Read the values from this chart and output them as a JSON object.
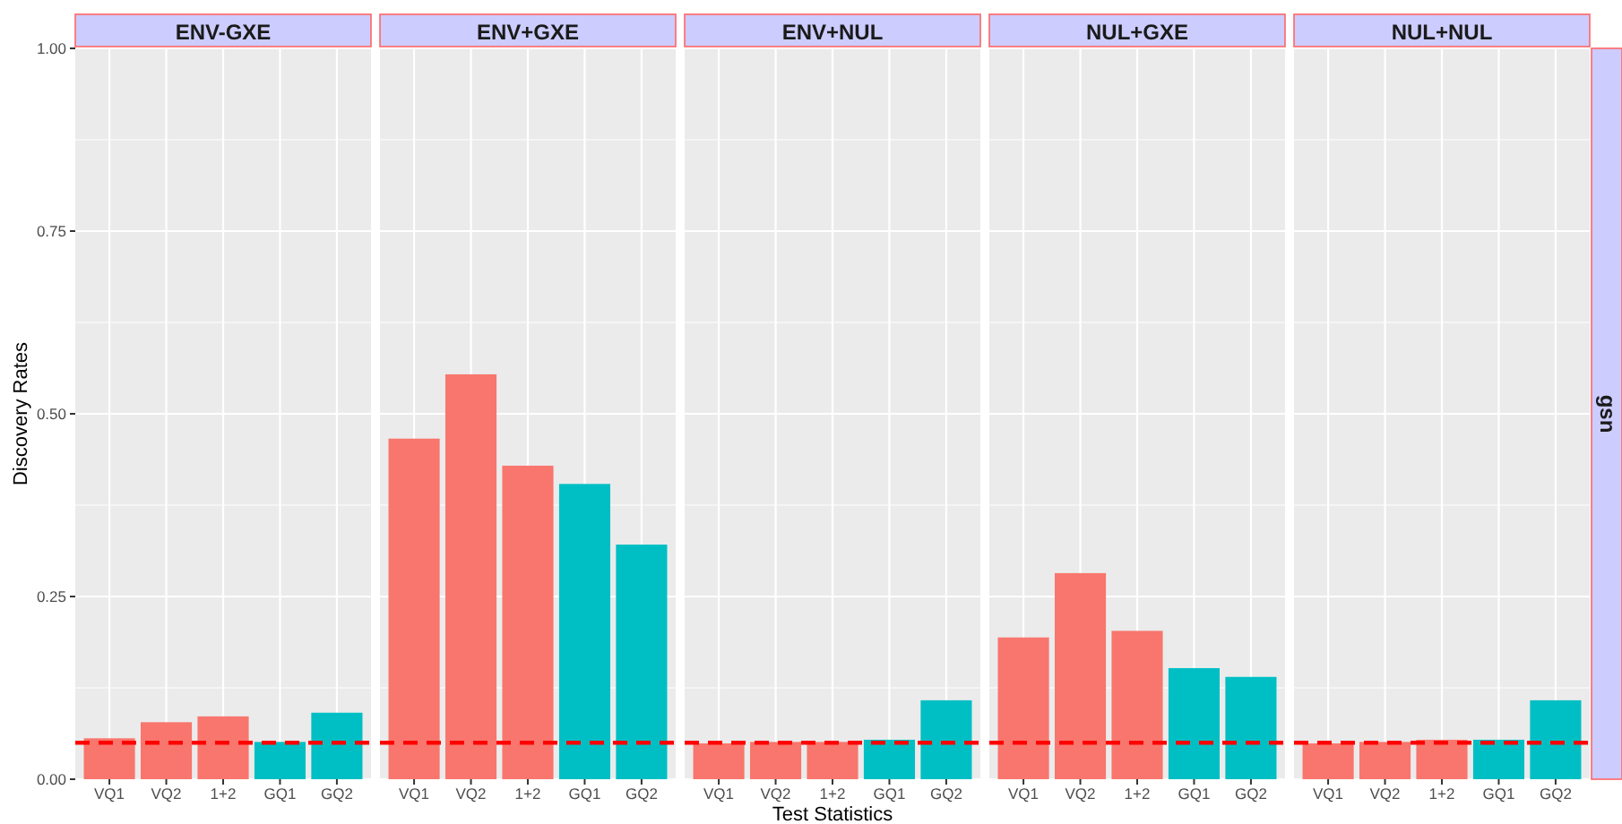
{
  "chart_data": [
    {
      "type": "bar",
      "title": "ENV-GXE",
      "ylabel": "Discovery Rates",
      "categories": [
        "VQ1",
        "VQ2",
        "1+2",
        "GQ1",
        "GQ2"
      ],
      "values": [
        0.056,
        0.078,
        0.086,
        0.051,
        0.091
      ],
      "colors": [
        "#f8766d",
        "#f8766d",
        "#f8766d",
        "#00bfc4",
        "#00bfc4"
      ],
      "ylim": [
        0,
        1
      ],
      "yticks": [
        {
          "value": 0,
          "label": "0.00"
        },
        {
          "value": 0.25,
          "label": "0.25"
        },
        {
          "value": 0.5,
          "label": "0.50"
        },
        {
          "value": 0.75,
          "label": "0.75"
        },
        {
          "value": 1,
          "label": "1.00"
        }
      ],
      "grid": true,
      "ref_lines": [
        {
          "axis": "y",
          "value": 0.05,
          "color": "#ff0000",
          "line_style": "dashed"
        }
      ]
    },
    {
      "type": "bar",
      "title": "ENV+GXE",
      "categories": [
        "VQ1",
        "VQ2",
        "1+2",
        "GQ1",
        "GQ2"
      ],
      "values": [
        0.466,
        0.554,
        0.429,
        0.404,
        0.321
      ],
      "colors": [
        "#f8766d",
        "#f8766d",
        "#f8766d",
        "#00bfc4",
        "#00bfc4"
      ],
      "ylim": [
        0,
        1
      ],
      "yticks": [
        0,
        0.25,
        0.5,
        0.75,
        1
      ],
      "tick_labels": "x",
      "grid": true,
      "ref_lines": [
        {
          "axis": "y",
          "value": 0.05,
          "color": "#ff0000",
          "line_style": "dashed"
        }
      ]
    },
    {
      "type": "bar",
      "title": "ENV+NUL",
      "xlabel": "Test Statistics",
      "categories": [
        "VQ1",
        "VQ2",
        "1+2",
        "GQ1",
        "GQ2"
      ],
      "values": [
        0.049,
        0.051,
        0.051,
        0.054,
        0.108
      ],
      "colors": [
        "#f8766d",
        "#f8766d",
        "#f8766d",
        "#00bfc4",
        "#00bfc4"
      ],
      "ylim": [
        0,
        1
      ],
      "yticks": [
        0,
        0.25,
        0.5,
        0.75,
        1
      ],
      "tick_labels": "x",
      "grid": true,
      "ref_lines": [
        {
          "axis": "y",
          "value": 0.05,
          "color": "#ff0000",
          "line_style": "dashed"
        }
      ]
    },
    {
      "type": "bar",
      "title": "NUL+GXE",
      "categories": [
        "VQ1",
        "VQ2",
        "1+2",
        "GQ1",
        "GQ2"
      ],
      "values": [
        0.194,
        0.282,
        0.203,
        0.152,
        0.14
      ],
      "colors": [
        "#f8766d",
        "#f8766d",
        "#f8766d",
        "#00bfc4",
        "#00bfc4"
      ],
      "ylim": [
        0,
        1
      ],
      "yticks": [
        0,
        0.25,
        0.5,
        0.75,
        1
      ],
      "tick_labels": "x",
      "grid": true,
      "ref_lines": [
        {
          "axis": "y",
          "value": 0.05,
          "color": "#ff0000",
          "line_style": "dashed"
        }
      ]
    },
    {
      "type": "bar",
      "title": "NUL+NUL",
      "annotations": [
        "gsn"
      ],
      "categories": [
        "VQ1",
        "VQ2",
        "1+2",
        "GQ1",
        "GQ2"
      ],
      "values": [
        0.049,
        0.051,
        0.054,
        0.054,
        0.108
      ],
      "colors": [
        "#f8766d",
        "#f8766d",
        "#f8766d",
        "#00bfc4",
        "#00bfc4"
      ],
      "ylim": [
        0,
        1
      ],
      "yticks": [
        0,
        0.25,
        0.5,
        0.75,
        1
      ],
      "tick_labels": "x",
      "grid": true,
      "ref_lines": [
        {
          "axis": "y",
          "value": 0.05,
          "color": "#ff0000",
          "line_style": "dashed"
        }
      ]
    }
  ]
}
